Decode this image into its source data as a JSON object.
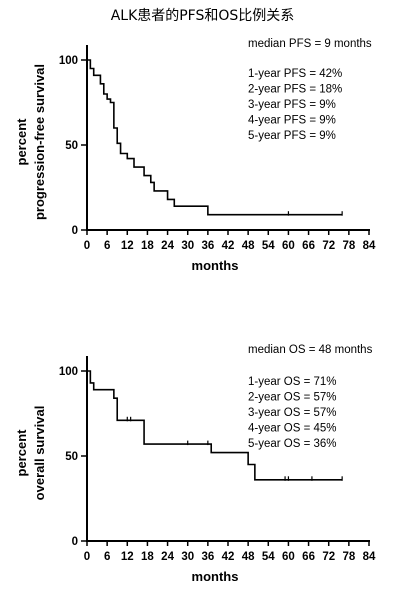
{
  "page_title": "ALK患者的PFS和OS比例关系",
  "chart_data": [
    {
      "type": "line",
      "subtype": "kaplan-meier",
      "ylabel_line1": "percent",
      "ylabel_line2": "progression-free survival",
      "xlabel": "months",
      "xlim": [
        0,
        84
      ],
      "ylim": [
        0,
        100
      ],
      "xticks": [
        0,
        6,
        12,
        18,
        24,
        30,
        36,
        42,
        48,
        54,
        60,
        66,
        72,
        78,
        84
      ],
      "yticks": [
        0,
        50,
        100
      ],
      "annotations": [
        "median PFS = 9 months",
        "1-year PFS = 42%",
        "2-year PFS = 18%",
        "3-year PFS = 9%",
        "4-year PFS = 9%",
        "5-year PFS = 9%"
      ],
      "steps": [
        [
          0,
          100
        ],
        [
          1,
          95
        ],
        [
          2,
          91
        ],
        [
          4,
          86
        ],
        [
          5,
          80
        ],
        [
          6,
          77
        ],
        [
          7,
          75
        ],
        [
          8,
          60
        ],
        [
          9,
          51
        ],
        [
          10,
          45
        ],
        [
          12,
          42
        ],
        [
          14,
          37
        ],
        [
          17,
          32
        ],
        [
          19,
          28
        ],
        [
          20,
          23
        ],
        [
          24,
          18
        ],
        [
          26,
          14
        ],
        [
          36,
          9
        ],
        [
          76,
          9
        ]
      ],
      "censored": [
        [
          60,
          9
        ],
        [
          76,
          9
        ]
      ]
    },
    {
      "type": "line",
      "subtype": "kaplan-meier",
      "ylabel_line1": "percent",
      "ylabel_line2": "overall survival",
      "xlabel": "months",
      "xlim": [
        0,
        84
      ],
      "ylim": [
        0,
        100
      ],
      "xticks": [
        0,
        6,
        12,
        18,
        24,
        30,
        36,
        42,
        48,
        54,
        60,
        66,
        72,
        78,
        84
      ],
      "yticks": [
        0,
        50,
        100
      ],
      "annotations": [
        "median OS = 48 months",
        "1-year OS = 71%",
        "2-year OS = 57%",
        "3-year OS = 57%",
        "4-year OS = 45%",
        "5-year OS = 36%"
      ],
      "steps": [
        [
          0,
          100
        ],
        [
          1,
          93
        ],
        [
          2,
          89
        ],
        [
          8,
          84
        ],
        [
          9,
          71
        ],
        [
          17,
          57
        ],
        [
          37,
          52
        ],
        [
          48,
          45
        ],
        [
          50,
          36
        ],
        [
          76,
          36
        ]
      ],
      "censored": [
        [
          12,
          71
        ],
        [
          13,
          71
        ],
        [
          30,
          57
        ],
        [
          36,
          57
        ],
        [
          59,
          36
        ],
        [
          60,
          36
        ],
        [
          67,
          36
        ],
        [
          76,
          36
        ]
      ]
    }
  ]
}
